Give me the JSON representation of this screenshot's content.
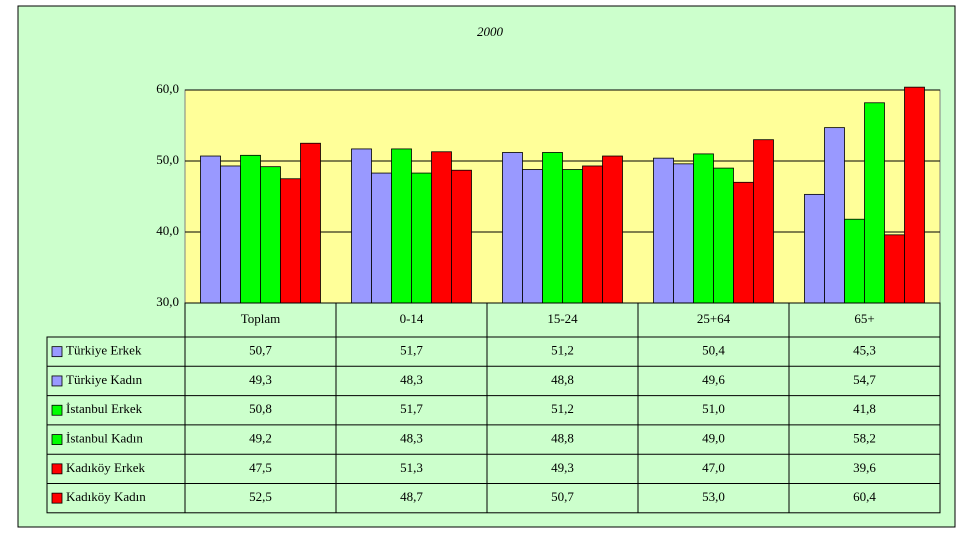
{
  "chart_data": {
    "type": "bar",
    "title": "2000",
    "categories": [
      "Toplam",
      "0-14",
      "15-24",
      "25+64",
      "65+"
    ],
    "series": [
      {
        "name": "Türkiye Erkek",
        "color": "#9999ff",
        "values": [
          50.7,
          51.7,
          51.2,
          50.4,
          45.3
        ],
        "value_labels": [
          "50,7",
          "51,7",
          "51,2",
          "50,4",
          "45,3"
        ]
      },
      {
        "name": "Türkiye Kadın",
        "color": "#9999ff",
        "values": [
          49.3,
          48.3,
          48.8,
          49.6,
          54.7
        ],
        "value_labels": [
          "49,3",
          "48,3",
          "48,8",
          "49,6",
          "54,7"
        ]
      },
      {
        "name": "İstanbul Erkek",
        "color": "#00ff00",
        "values": [
          50.8,
          51.7,
          51.2,
          51.0,
          41.8
        ],
        "value_labels": [
          "50,8",
          "51,7",
          "51,2",
          "51,0",
          "41,8"
        ]
      },
      {
        "name": "İstanbul Kadın",
        "color": "#00ff00",
        "values": [
          49.2,
          48.3,
          48.8,
          49.0,
          58.2
        ],
        "value_labels": [
          "49,2",
          "48,3",
          "48,8",
          "49,0",
          "58,2"
        ]
      },
      {
        "name": "Kadıköy Erkek",
        "color": "#ff0000",
        "values": [
          47.5,
          51.3,
          49.3,
          47.0,
          39.6
        ],
        "value_labels": [
          "47,5",
          "51,3",
          "49,3",
          "47,0",
          "39,6"
        ]
      },
      {
        "name": "Kadıköy Kadın",
        "color": "#ff0000",
        "values": [
          52.5,
          48.7,
          50.7,
          53.0,
          60.4
        ],
        "value_labels": [
          "52,5",
          "48,7",
          "50,7",
          "53,0",
          "60,4"
        ]
      }
    ],
    "ylim": [
      30,
      60
    ],
    "yticks": [
      {
        "value": 30,
        "label": "30,0"
      },
      {
        "value": 40,
        "label": "40,0"
      },
      {
        "value": 50,
        "label": "50,0"
      },
      {
        "value": 60,
        "label": "60,0"
      }
    ],
    "grid": true
  }
}
